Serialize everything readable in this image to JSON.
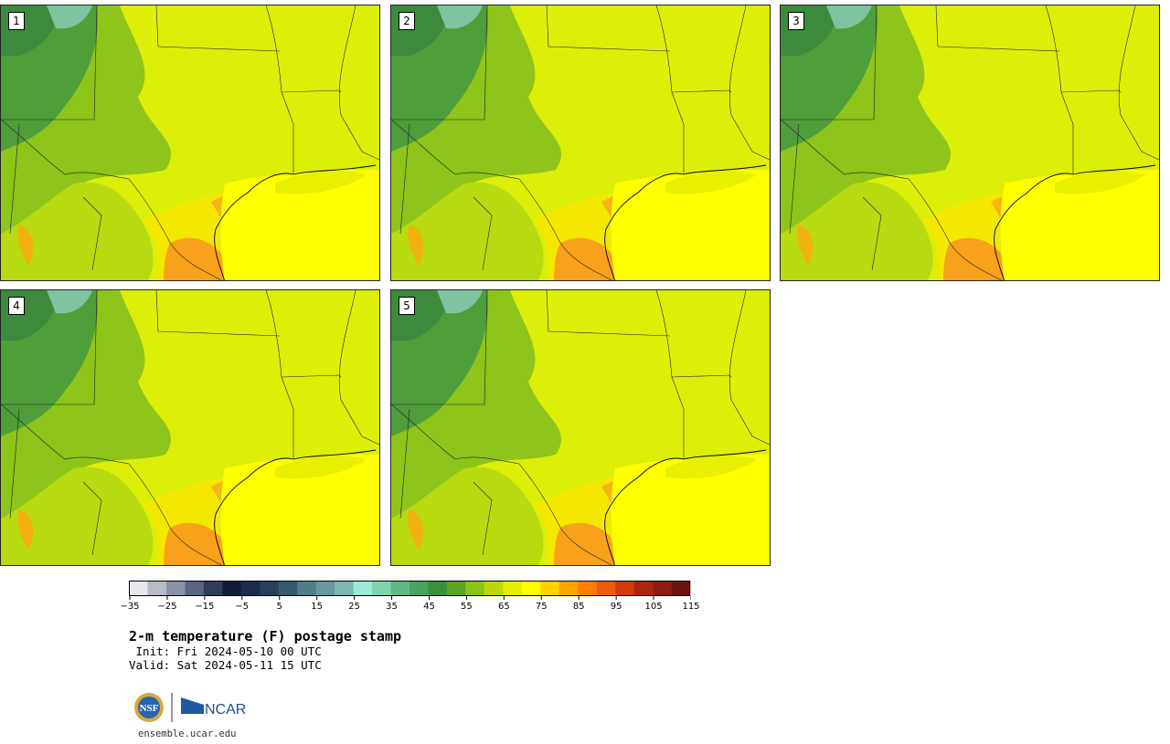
{
  "panels": [
    {
      "label": "1"
    },
    {
      "label": "2"
    },
    {
      "label": "3"
    },
    {
      "label": "4"
    },
    {
      "label": "5"
    }
  ],
  "colorbar": {
    "ticks": [
      "−35",
      "−25",
      "−15",
      "−5",
      "5",
      "15",
      "25",
      "35",
      "45",
      "55",
      "65",
      "75",
      "85",
      "95",
      "105",
      "115"
    ],
    "colors": [
      "#e6e8ec",
      "#b8bbc6",
      "#8d93a6",
      "#5b6480",
      "#2f3b5b",
      "#131d3a",
      "#1b2b4c",
      "#25415d",
      "#355b6e",
      "#4f7f87",
      "#67999d",
      "#7fb8b2",
      "#9de8d6",
      "#80d2ae",
      "#62b884",
      "#4aa361",
      "#3a8f3c",
      "#5ca426",
      "#8cc414",
      "#bcd80c",
      "#e4ee00",
      "#ffff00",
      "#ffd200",
      "#ffa500",
      "#ff7f00",
      "#f05a0a",
      "#d33a0c",
      "#b0250f",
      "#8c1c10",
      "#6a160d"
    ]
  },
  "title": "2-m temperature (F) postage stamp",
  "init_line": " Init: Fri 2024-05-10 00 UTC",
  "valid_line": "Valid: Sat 2024-05-11 15 UTC",
  "logo": {
    "nsf": "NSF",
    "ncar": "NCAR"
  },
  "website": "ensemble.ucar.edu"
}
